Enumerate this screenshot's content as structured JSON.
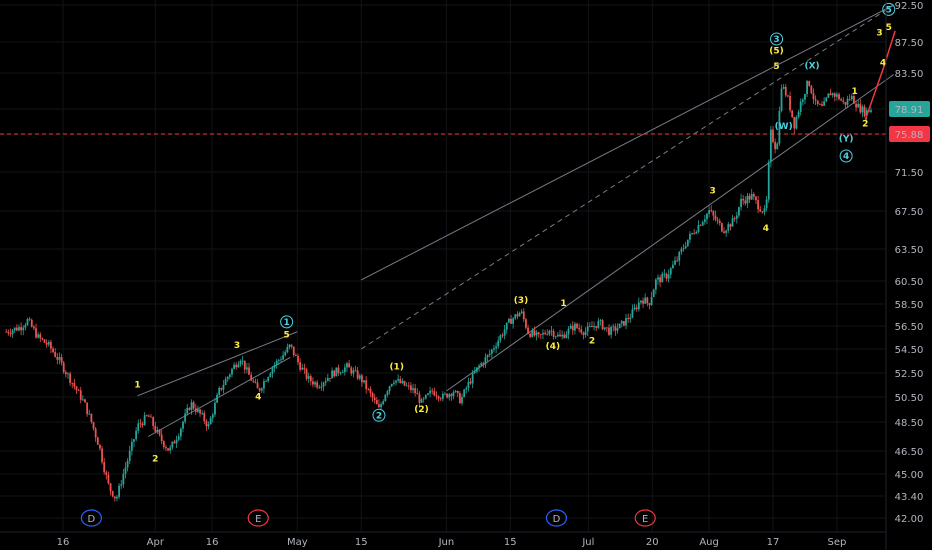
{
  "colors": {
    "background": "#000000",
    "grid": "#111318",
    "axis_text": "#b2b5be",
    "up": "#26a69a",
    "down": "#ef5350",
    "channel": "#787b86",
    "wave_primary": "#ffeb3b",
    "wave_cycle": "#4dd0e1",
    "marker_blue": "#2962ff",
    "marker_red": "#f23645",
    "price_current": "#26a69a",
    "price_level": "#f23645",
    "projection": "#f23645"
  },
  "chart_data": {
    "type": "candlestick",
    "title": "",
    "xlabel": "",
    "ylabel": "",
    "y_axis_side": "right",
    "x_ticks": [
      {
        "label": "16",
        "x": 0.0
      },
      {
        "label": "Apr",
        "x": 1.3
      },
      {
        "label": "16",
        "x": 2.1
      },
      {
        "label": "May",
        "x": 3.3
      },
      {
        "label": "15",
        "x": 4.2
      },
      {
        "label": "Jun",
        "x": 5.4
      },
      {
        "label": "15",
        "x": 6.3
      },
      {
        "label": "Jul",
        "x": 7.4
      },
      {
        "label": "20",
        "x": 8.3
      },
      {
        "label": "Aug",
        "x": 9.1
      },
      {
        "label": "17",
        "x": 10.0
      },
      {
        "label": "Sep",
        "x": 10.9
      }
    ],
    "y_ticks": [
      "92.50",
      "87.50",
      "83.50",
      "78.91",
      "75.88",
      "71.50",
      "67.50",
      "63.50",
      "60.50",
      "58.50",
      "56.50",
      "54.50",
      "52.50",
      "50.50",
      "48.50",
      "46.50",
      "45.00",
      "43.40",
      "42.00"
    ],
    "y_tick_values": [
      92.5,
      87.5,
      83.5,
      78.91,
      75.88,
      71.5,
      67.5,
      63.5,
      60.5,
      58.5,
      56.5,
      54.5,
      52.5,
      50.5,
      48.5,
      46.5,
      45.0,
      43.4,
      42.0
    ],
    "x_range": [
      -0.8,
      11.4
    ],
    "price_path": [
      [
        -0.8,
        56.0
      ],
      [
        -0.6,
        56.4
      ],
      [
        -0.5,
        57.0
      ],
      [
        -0.35,
        55.5
      ],
      [
        -0.2,
        54.8
      ],
      [
        -0.05,
        53.5
      ],
      [
        0.1,
        52.0
      ],
      [
        0.3,
        50.0
      ],
      [
        0.5,
        47.0
      ],
      [
        0.65,
        44.0
      ],
      [
        0.75,
        43.2
      ],
      [
        0.85,
        45.0
      ],
      [
        0.95,
        46.5
      ],
      [
        1.05,
        48.2
      ],
      [
        1.2,
        49.0
      ],
      [
        1.35,
        47.5
      ],
      [
        1.5,
        46.5
      ],
      [
        1.65,
        48.0
      ],
      [
        1.8,
        50.0
      ],
      [
        1.95,
        49.0
      ],
      [
        2.05,
        48.2
      ],
      [
        2.2,
        51.0
      ],
      [
        2.4,
        53.0
      ],
      [
        2.5,
        53.8
      ],
      [
        2.6,
        52.5
      ],
      [
        2.75,
        51.0
      ],
      [
        2.95,
        53.0
      ],
      [
        3.1,
        54.0
      ],
      [
        3.2,
        54.8
      ],
      [
        3.3,
        53.5
      ],
      [
        3.45,
        52.0
      ],
      [
        3.6,
        51.5
      ],
      [
        3.8,
        52.5
      ],
      [
        4.0,
        53.0
      ],
      [
        4.2,
        52.0
      ],
      [
        4.35,
        50.5
      ],
      [
        4.45,
        49.5
      ],
      [
        4.55,
        51.0
      ],
      [
        4.65,
        52.0
      ],
      [
        4.8,
        51.5
      ],
      [
        4.95,
        51.0
      ],
      [
        5.05,
        50.0
      ],
      [
        5.2,
        51.0
      ],
      [
        5.35,
        50.5
      ],
      [
        5.5,
        51.0
      ],
      [
        5.6,
        50.2
      ],
      [
        5.7,
        51.5
      ],
      [
        5.85,
        53.0
      ],
      [
        6.0,
        54.0
      ],
      [
        6.15,
        55.5
      ],
      [
        6.3,
        57.0
      ],
      [
        6.45,
        57.8
      ],
      [
        6.55,
        56.0
      ],
      [
        6.7,
        55.5
      ],
      [
        6.85,
        56.2
      ],
      [
        7.0,
        55.5
      ],
      [
        7.2,
        56.5
      ],
      [
        7.35,
        56.0
      ],
      [
        7.55,
        56.8
      ],
      [
        7.7,
        56.0
      ],
      [
        7.85,
        56.5
      ],
      [
        8.0,
        57.5
      ],
      [
        8.15,
        59.0
      ],
      [
        8.25,
        58.5
      ],
      [
        8.35,
        60.5
      ],
      [
        8.5,
        61.0
      ],
      [
        8.65,
        62.5
      ],
      [
        8.8,
        64.5
      ],
      [
        8.95,
        66.0
      ],
      [
        9.1,
        67.5
      ],
      [
        9.2,
        66.5
      ],
      [
        9.3,
        65.5
      ],
      [
        9.45,
        66.5
      ],
      [
        9.55,
        68.5
      ],
      [
        9.7,
        69.0
      ],
      [
        9.8,
        68.0
      ],
      [
        9.9,
        67.2
      ],
      [
        9.97,
        76.0
      ],
      [
        10.05,
        74.0
      ],
      [
        10.12,
        82.0
      ],
      [
        10.2,
        80.5
      ],
      [
        10.3,
        77.0
      ],
      [
        10.4,
        80.0
      ],
      [
        10.5,
        82.5
      ],
      [
        10.6,
        79.5
      ],
      [
        10.7,
        79.0
      ],
      [
        10.8,
        81.0
      ],
      [
        10.92,
        80.5
      ],
      [
        11.0,
        79.5
      ],
      [
        11.1,
        80.5
      ],
      [
        11.2,
        79.2
      ],
      [
        11.3,
        78.5
      ],
      [
        11.4,
        79.0
      ]
    ],
    "current_price": 78.91,
    "horizontal_level": 75.88,
    "channel_lines": [
      {
        "style": "solid",
        "from": [
          4.2,
          60.6
        ],
        "to": [
          11.7,
          92.5
        ]
      },
      {
        "style": "dashed",
        "from": [
          4.2,
          54.5
        ],
        "to": [
          11.7,
          92.5
        ]
      },
      {
        "style": "solid",
        "from": [
          5.4,
          51.0
        ],
        "to": [
          11.7,
          83.3
        ]
      },
      {
        "style": "solid",
        "from": [
          1.05,
          50.6
        ],
        "to": [
          3.3,
          56.0
        ]
      },
      {
        "style": "solid",
        "from": [
          1.2,
          47.5
        ],
        "to": [
          3.2,
          53.8
        ]
      }
    ],
    "projection": [
      [
        11.3,
        77.6
      ],
      [
        11.55,
        84.0
      ],
      [
        11.72,
        89.0
      ]
    ],
    "wave_labels": [
      {
        "text": "1",
        "x": 1.05,
        "y": 51.3,
        "color": "wave_primary",
        "circled": false
      },
      {
        "text": "2",
        "x": 1.3,
        "y": 45.8,
        "color": "wave_primary",
        "circled": false
      },
      {
        "text": "3",
        "x": 2.45,
        "y": 54.6,
        "color": "wave_primary",
        "circled": false
      },
      {
        "text": "4",
        "x": 2.75,
        "y": 50.3,
        "color": "wave_primary",
        "circled": false
      },
      {
        "text": "5",
        "x": 3.15,
        "y": 55.5,
        "color": "wave_primary",
        "circled": false
      },
      {
        "text": "1",
        "x": 3.15,
        "y": 56.6,
        "color": "wave_cycle",
        "circled": true
      },
      {
        "text": "(1)",
        "x": 4.7,
        "y": 52.8,
        "color": "wave_primary",
        "circled": false
      },
      {
        "text": "2",
        "x": 4.45,
        "y": 48.8,
        "color": "wave_cycle",
        "circled": true
      },
      {
        "text": "(2)",
        "x": 5.05,
        "y": 49.3,
        "color": "wave_primary",
        "circled": false
      },
      {
        "text": "(3)",
        "x": 6.45,
        "y": 58.6,
        "color": "wave_primary",
        "circled": false
      },
      {
        "text": "1",
        "x": 7.05,
        "y": 58.3,
        "color": "wave_primary",
        "circled": false
      },
      {
        "text": "(4)",
        "x": 6.9,
        "y": 54.5,
        "color": "wave_primary",
        "circled": false
      },
      {
        "text": "2",
        "x": 7.45,
        "y": 55.0,
        "color": "wave_primary",
        "circled": false
      },
      {
        "text": "3",
        "x": 9.15,
        "y": 69.3,
        "color": "wave_primary",
        "circled": false
      },
      {
        "text": "4",
        "x": 9.9,
        "y": 65.4,
        "color": "wave_primary",
        "circled": false
      },
      {
        "text": "3",
        "x": 10.05,
        "y": 87.5,
        "color": "wave_cycle",
        "circled": true
      },
      {
        "text": "(5)",
        "x": 10.05,
        "y": 86.0,
        "color": "wave_primary",
        "circled": false
      },
      {
        "text": "5",
        "x": 10.05,
        "y": 84.0,
        "color": "wave_primary",
        "circled": false
      },
      {
        "text": "(W)",
        "x": 10.15,
        "y": 76.5,
        "color": "wave_cycle",
        "circled": false
      },
      {
        "text": "(X)",
        "x": 10.55,
        "y": 84.1,
        "color": "wave_cycle",
        "circled": false
      },
      {
        "text": "1",
        "x": 11.15,
        "y": 80.8,
        "color": "wave_primary",
        "circled": false
      },
      {
        "text": "(Y)",
        "x": 11.03,
        "y": 75.0,
        "color": "wave_cycle",
        "circled": false
      },
      {
        "text": "2",
        "x": 11.3,
        "y": 76.8,
        "color": "wave_primary",
        "circled": false
      },
      {
        "text": "4",
        "x": 11.03,
        "y": 73.0,
        "color": "wave_cycle",
        "circled": true
      },
      {
        "text": "3",
        "x": 11.5,
        "y": 88.4,
        "color": "wave_primary",
        "circled": false
      },
      {
        "text": "4",
        "x": 11.55,
        "y": 84.5,
        "color": "wave_primary",
        "circled": false
      },
      {
        "text": "5",
        "x": 11.63,
        "y": 89.1,
        "color": "wave_primary",
        "circled": false
      },
      {
        "text": "5",
        "x": 11.63,
        "y": 91.5,
        "color": "wave_cycle",
        "circled": true
      }
    ],
    "time_markers": [
      {
        "text": "D",
        "x": 0.4,
        "color": "marker_blue"
      },
      {
        "text": "E",
        "x": 2.75,
        "color": "marker_red"
      },
      {
        "text": "D",
        "x": 6.95,
        "color": "marker_blue"
      },
      {
        "text": "E",
        "x": 8.2,
        "color": "marker_red"
      }
    ]
  }
}
